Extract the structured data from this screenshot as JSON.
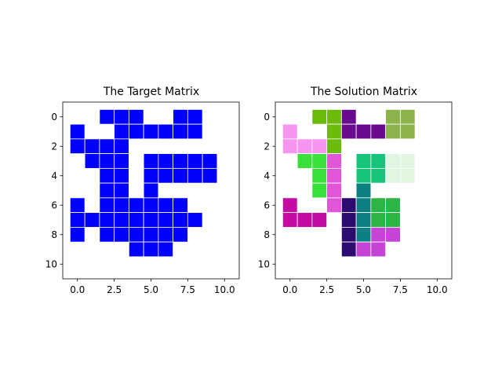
{
  "chart_data": [
    {
      "type": "heatmap",
      "title": "The Target Matrix",
      "xlim": [
        -1,
        11
      ],
      "ylim": [
        11,
        -1
      ],
      "xticks": [
        0.0,
        2.5,
        5.0,
        7.5,
        10.0
      ],
      "xtick_labels": [
        "0.0",
        "2.5",
        "5.0",
        "7.5",
        "10.0"
      ],
      "yticks": [
        0,
        2,
        4,
        6,
        8,
        10
      ],
      "ytick_labels": [
        "0",
        "2",
        "4",
        "6",
        "8",
        "10"
      ],
      "grid": false,
      "color": "#0000ff",
      "cells": [
        [
          2,
          0
        ],
        [
          3,
          0
        ],
        [
          4,
          0
        ],
        [
          7,
          0
        ],
        [
          8,
          0
        ],
        [
          0,
          1
        ],
        [
          3,
          1
        ],
        [
          4,
          1
        ],
        [
          5,
          1
        ],
        [
          6,
          1
        ],
        [
          7,
          1
        ],
        [
          8,
          1
        ],
        [
          0,
          2
        ],
        [
          1,
          2
        ],
        [
          2,
          2
        ],
        [
          3,
          2
        ],
        [
          1,
          3
        ],
        [
          2,
          3
        ],
        [
          3,
          3
        ],
        [
          5,
          3
        ],
        [
          6,
          3
        ],
        [
          7,
          3
        ],
        [
          8,
          3
        ],
        [
          9,
          3
        ],
        [
          2,
          4
        ],
        [
          3,
          4
        ],
        [
          5,
          4
        ],
        [
          6,
          4
        ],
        [
          7,
          4
        ],
        [
          8,
          4
        ],
        [
          9,
          4
        ],
        [
          2,
          5
        ],
        [
          3,
          5
        ],
        [
          5,
          5
        ],
        [
          0,
          6
        ],
        [
          2,
          6
        ],
        [
          3,
          6
        ],
        [
          4,
          6
        ],
        [
          5,
          6
        ],
        [
          6,
          6
        ],
        [
          7,
          6
        ],
        [
          0,
          7
        ],
        [
          1,
          7
        ],
        [
          2,
          7
        ],
        [
          3,
          7
        ],
        [
          4,
          7
        ],
        [
          5,
          7
        ],
        [
          6,
          7
        ],
        [
          7,
          7
        ],
        [
          8,
          7
        ],
        [
          0,
          8
        ],
        [
          2,
          8
        ],
        [
          3,
          8
        ],
        [
          4,
          8
        ],
        [
          5,
          8
        ],
        [
          6,
          8
        ],
        [
          7,
          8
        ],
        [
          4,
          9
        ],
        [
          5,
          9
        ],
        [
          6,
          9
        ]
      ]
    },
    {
      "type": "heatmap",
      "title": "The Solution Matrix",
      "xlim": [
        -1,
        11
      ],
      "ylim": [
        11,
        -1
      ],
      "xticks": [
        0.0,
        2.5,
        5.0,
        7.5,
        10.0
      ],
      "xtick_labels": [
        "0.0",
        "2.5",
        "5.0",
        "7.5",
        "10.0"
      ],
      "yticks": [
        0,
        2,
        4,
        6,
        8,
        10
      ],
      "ytick_labels": [
        "0",
        "2",
        "4",
        "6",
        "8",
        "10"
      ],
      "grid": false,
      "pieces": [
        {
          "color": "#6cbb0a",
          "cells": [
            [
              2,
              0
            ],
            [
              3,
              0
            ],
            [
              3,
              1
            ],
            [
              3,
              2
            ]
          ]
        },
        {
          "color": "#6a0a90",
          "cells": [
            [
              4,
              0
            ],
            [
              4,
              1
            ],
            [
              5,
              1
            ],
            [
              6,
              1
            ]
          ]
        },
        {
          "color": "#8db34c",
          "cells": [
            [
              7,
              0
            ],
            [
              8,
              0
            ],
            [
              7,
              1
            ],
            [
              8,
              1
            ]
          ]
        },
        {
          "color": "#f696f2",
          "cells": [
            [
              0,
              1
            ],
            [
              0,
              2
            ],
            [
              1,
              2
            ],
            [
              2,
              2
            ]
          ]
        },
        {
          "color": "#3ae03a",
          "cells": [
            [
              1,
              3
            ],
            [
              2,
              3
            ],
            [
              2,
              4
            ],
            [
              2,
              5
            ]
          ]
        },
        {
          "color": "#e056d6",
          "cells": [
            [
              3,
              3
            ],
            [
              3,
              4
            ],
            [
              3,
              5
            ],
            [
              3,
              6
            ]
          ]
        },
        {
          "color": "#16c47a",
          "cells": [
            [
              5,
              3
            ],
            [
              6,
              3
            ],
            [
              5,
              4
            ],
            [
              6,
              4
            ]
          ]
        },
        {
          "color": "#e0f6e0",
          "cells": [
            [
              7,
              3
            ],
            [
              8,
              3
            ],
            [
              7,
              4
            ],
            [
              8,
              4
            ]
          ]
        },
        {
          "color": "#c40ca4",
          "cells": [
            [
              0,
              6
            ],
            [
              0,
              7
            ],
            [
              1,
              7
            ],
            [
              2,
              7
            ]
          ]
        },
        {
          "color": "#2c0a70",
          "cells": [
            [
              4,
              6
            ],
            [
              4,
              7
            ],
            [
              4,
              8
            ],
            [
              4,
              9
            ]
          ]
        },
        {
          "color": "#0a8080",
          "cells": [
            [
              5,
              5
            ],
            [
              5,
              6
            ],
            [
              5,
              7
            ],
            [
              5,
              8
            ]
          ]
        },
        {
          "color": "#2cb444",
          "cells": [
            [
              6,
              6
            ],
            [
              7,
              6
            ],
            [
              6,
              7
            ],
            [
              7,
              7
            ]
          ]
        },
        {
          "color": "#c444d6",
          "cells": [
            [
              6,
              8
            ],
            [
              7,
              8
            ],
            [
              5,
              9
            ],
            [
              6,
              9
            ]
          ]
        }
      ]
    }
  ]
}
